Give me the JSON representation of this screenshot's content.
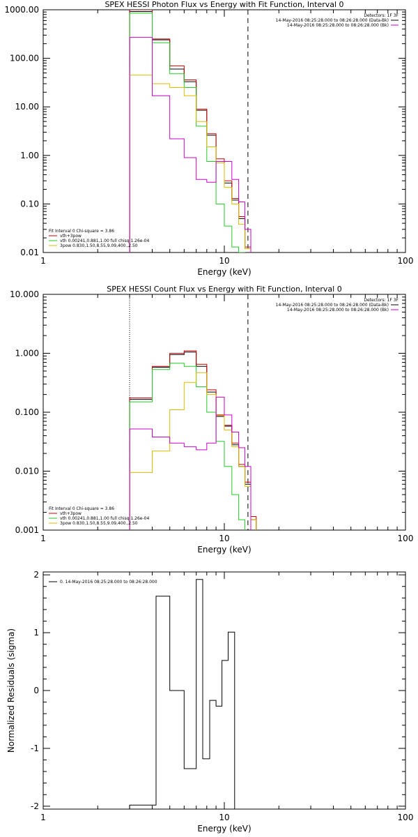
{
  "chart_data": [
    {
      "type": "line",
      "title": "SPEX HESSI Photon Flux vs Energy with Fit Function, Interval 0",
      "xlabel": "Energy (keV)",
      "ylabel": "",
      "xscale": "log",
      "yscale": "log",
      "xlim": [
        1,
        100
      ],
      "ylim": [
        0.01,
        1000
      ],
      "xticks": [
        {
          "v": 1,
          "label": "1"
        },
        {
          "v": 10,
          "label": "10"
        },
        {
          "v": 100,
          "label": "100"
        }
      ],
      "yticks": [
        {
          "v": 0.01,
          "label": "0.01"
        },
        {
          "v": 0.1,
          "label": "0.10"
        },
        {
          "v": 1,
          "label": "1.00"
        },
        {
          "v": 10,
          "label": "10.00"
        },
        {
          "v": 100,
          "label": "100.00"
        },
        {
          "v": 1000,
          "label": "1000.00"
        }
      ],
      "vlines": [
        {
          "x": 3.0,
          "style": "dotted",
          "color": "#000000"
        },
        {
          "x": 13.5,
          "style": "dashed",
          "color": "#000000"
        }
      ],
      "edges": [
        3.0,
        4.0,
        5.0,
        6.0,
        7.0,
        8.0,
        9.0,
        10.0,
        11.0,
        12.0,
        13.0,
        14.0,
        15.0
      ],
      "series": [
        {
          "name": "",
          "color": "#000000",
          "values": [
            920,
            240,
            60,
            33,
            8.5,
            2.6,
            0.75,
            0.27,
            0.12,
            0.05,
            0.012,
            null
          ]
        },
        {
          "name": "vth+3pow",
          "color": "#cc0000",
          "values": [
            1000,
            250,
            70,
            36,
            9,
            2.8,
            0.85,
            0.3,
            0.13,
            0.055,
            0.013,
            null
          ]
        },
        {
          "name": "vth 0.00241,0.881,1.00  full chisq 1.26e-04",
          "color": "#22cc22",
          "values": [
            850,
            210,
            48,
            25,
            4,
            0.75,
            0.1,
            0.035,
            0.013,
            0.009,
            null,
            null
          ]
        },
        {
          "name": "3pow 0.830,1.50,8.55,9.09,400.,2.50",
          "color": "#ddbb00",
          "values": [
            45,
            30,
            25,
            17,
            5,
            1.5,
            0.7,
            0.22,
            0.1,
            0.038,
            0.012,
            null
          ]
        },
        {
          "name": "",
          "color": "#cc00cc",
          "values": [
            270,
            17,
            2.2,
            0.9,
            0.32,
            0.28,
            0.75,
            0.75,
            0.32,
            0.11,
            0.03,
            null
          ]
        }
      ],
      "legend": {
        "position": "bottom-left",
        "header": "Fit Interval  0    Chi-square = 3.86",
        "entries": [
          {
            "text": "vth+3pow",
            "color": "#cc0000"
          },
          {
            "text": "vth 0.00241,0.881,1.00  full chisq 1.26e-04",
            "color": "#22cc22"
          },
          {
            "text": "3pow 0.830,1.50,8.55,9.09,400.,2.50",
            "color": "#ddbb00"
          }
        ]
      },
      "legend2": {
        "position": "top-right",
        "header": "Detectors: 1F 3F",
        "entries": [
          {
            "text": "14-May-2016 08:25:28.000 to 08:26:28.000 (Data-Bk)",
            "color": "#000000"
          },
          {
            "text": "14-May-2016 08:25:28.000 to 08:26:28.000 (Bk)",
            "color": "#cc00cc"
          }
        ]
      }
    },
    {
      "type": "line",
      "title": "SPEX HESSI Count Flux vs Energy with Fit Function, Interval 0",
      "xlabel": "Energy (keV)",
      "ylabel": "",
      "xscale": "log",
      "yscale": "log",
      "xlim": [
        1,
        100
      ],
      "ylim": [
        0.001,
        10
      ],
      "xticks": [
        {
          "v": 1,
          "label": "1"
        },
        {
          "v": 10,
          "label": "10"
        },
        {
          "v": 100,
          "label": "100"
        }
      ],
      "yticks": [
        {
          "v": 0.001,
          "label": "0.001"
        },
        {
          "v": 0.01,
          "label": "0.010"
        },
        {
          "v": 0.1,
          "label": "0.100"
        },
        {
          "v": 1,
          "label": "1.000"
        },
        {
          "v": 10,
          "label": "10.000"
        }
      ],
      "vlines": [
        {
          "x": 3.0,
          "style": "dotted",
          "color": "#000000"
        },
        {
          "x": 13.5,
          "style": "dashed",
          "color": "#000000"
        }
      ],
      "edges": [
        3.0,
        4.0,
        5.0,
        6.0,
        7.0,
        8.0,
        9.0,
        10.0,
        11.0,
        12.0,
        13.0,
        14.0,
        15.0
      ],
      "series": [
        {
          "name": "",
          "color": "#000000",
          "values": [
            0.165,
            0.58,
            0.95,
            1.05,
            0.6,
            0.22,
            0.085,
            0.058,
            0.028,
            0.012,
            0.006,
            0.0015
          ]
        },
        {
          "name": "vth+3pow",
          "color": "#cc0000",
          "values": [
            0.175,
            0.6,
            1.0,
            1.1,
            0.65,
            0.24,
            0.09,
            0.06,
            0.03,
            0.013,
            0.0065,
            0.0017
          ]
        },
        {
          "name": "vth 0.00241,0.881,1.00  full chisq 1.26e-04",
          "color": "#22cc22",
          "values": [
            0.15,
            0.53,
            0.68,
            0.6,
            0.27,
            0.1,
            0.032,
            0.012,
            0.004,
            0.0015,
            null,
            null
          ]
        },
        {
          "name": "3pow 0.830,1.50,8.55,9.09,400.,2.50",
          "color": "#ddbb00",
          "values": [
            0.0095,
            0.022,
            0.11,
            0.32,
            0.47,
            0.2,
            0.088,
            0.05,
            0.026,
            0.012,
            0.0055,
            0.0015
          ]
        },
        {
          "name": "",
          "color": "#cc00cc",
          "values": [
            0.052,
            0.038,
            0.03,
            0.026,
            0.023,
            0.03,
            0.18,
            0.09,
            0.046,
            0.025,
            0.012,
            null
          ]
        }
      ],
      "legend": {
        "position": "bottom-left",
        "header": "Fit Interval  0    Chi-square = 3.86",
        "entries": [
          {
            "text": "vth+3pow",
            "color": "#cc0000"
          },
          {
            "text": "vth 0.00241,0.881,1.00  full chisq 1.26e-04",
            "color": "#22cc22"
          },
          {
            "text": "3pow 0.830,1.50,8.55,9.09,400.,2.50",
            "color": "#ddbb00"
          }
        ]
      },
      "legend2": {
        "position": "top-right",
        "header": "Detectors: 1F 3F",
        "entries": [
          {
            "text": "14-May-2016 08:25:28.000 to 08:26:28.000 (Data-Bk)",
            "color": "#000000"
          },
          {
            "text": "14-May-2016 08:25:28.000 to 08:26:28.000 (Bk)",
            "color": "#cc00cc"
          }
        ]
      }
    },
    {
      "type": "line",
      "title": "",
      "xlabel": "Energy (keV)",
      "ylabel": "Normalized Residuals (sigma)",
      "xscale": "log",
      "yscale": "linear",
      "xlim": [
        1,
        100
      ],
      "ylim": [
        -2.05,
        2.05
      ],
      "xticks": [
        {
          "v": 1,
          "label": "1"
        },
        {
          "v": 10,
          "label": "10"
        },
        {
          "v": 100,
          "label": "100"
        }
      ],
      "yticks": [
        {
          "v": -2,
          "label": "-2"
        },
        {
          "v": -1,
          "label": "-1"
        },
        {
          "v": 0,
          "label": "0"
        },
        {
          "v": 1,
          "label": "1"
        },
        {
          "v": 2,
          "label": "2"
        }
      ],
      "vlines": [],
      "edges": [
        3.0,
        4.2,
        5.0,
        6.0,
        7.0,
        7.6,
        8.3,
        9.0,
        9.7,
        10.5,
        11.4,
        12.3,
        13.3
      ],
      "series": [
        {
          "name": "0. 14-May-2016 08:25:28.000 to 08:26:28.000",
          "color": "#000000",
          "values": [
            -1.98,
            1.63,
            0.0,
            -1.35,
            1.92,
            -1.18,
            -0.17,
            -0.27,
            0.52,
            1.01,
            null,
            null
          ]
        }
      ],
      "legend": {
        "position": "top-left",
        "header": "",
        "entries": [
          {
            "text": "0. 14-May-2016 08:25:28.000 to 08:26:28.000",
            "color": "#000000"
          }
        ]
      },
      "legend2": null
    }
  ]
}
